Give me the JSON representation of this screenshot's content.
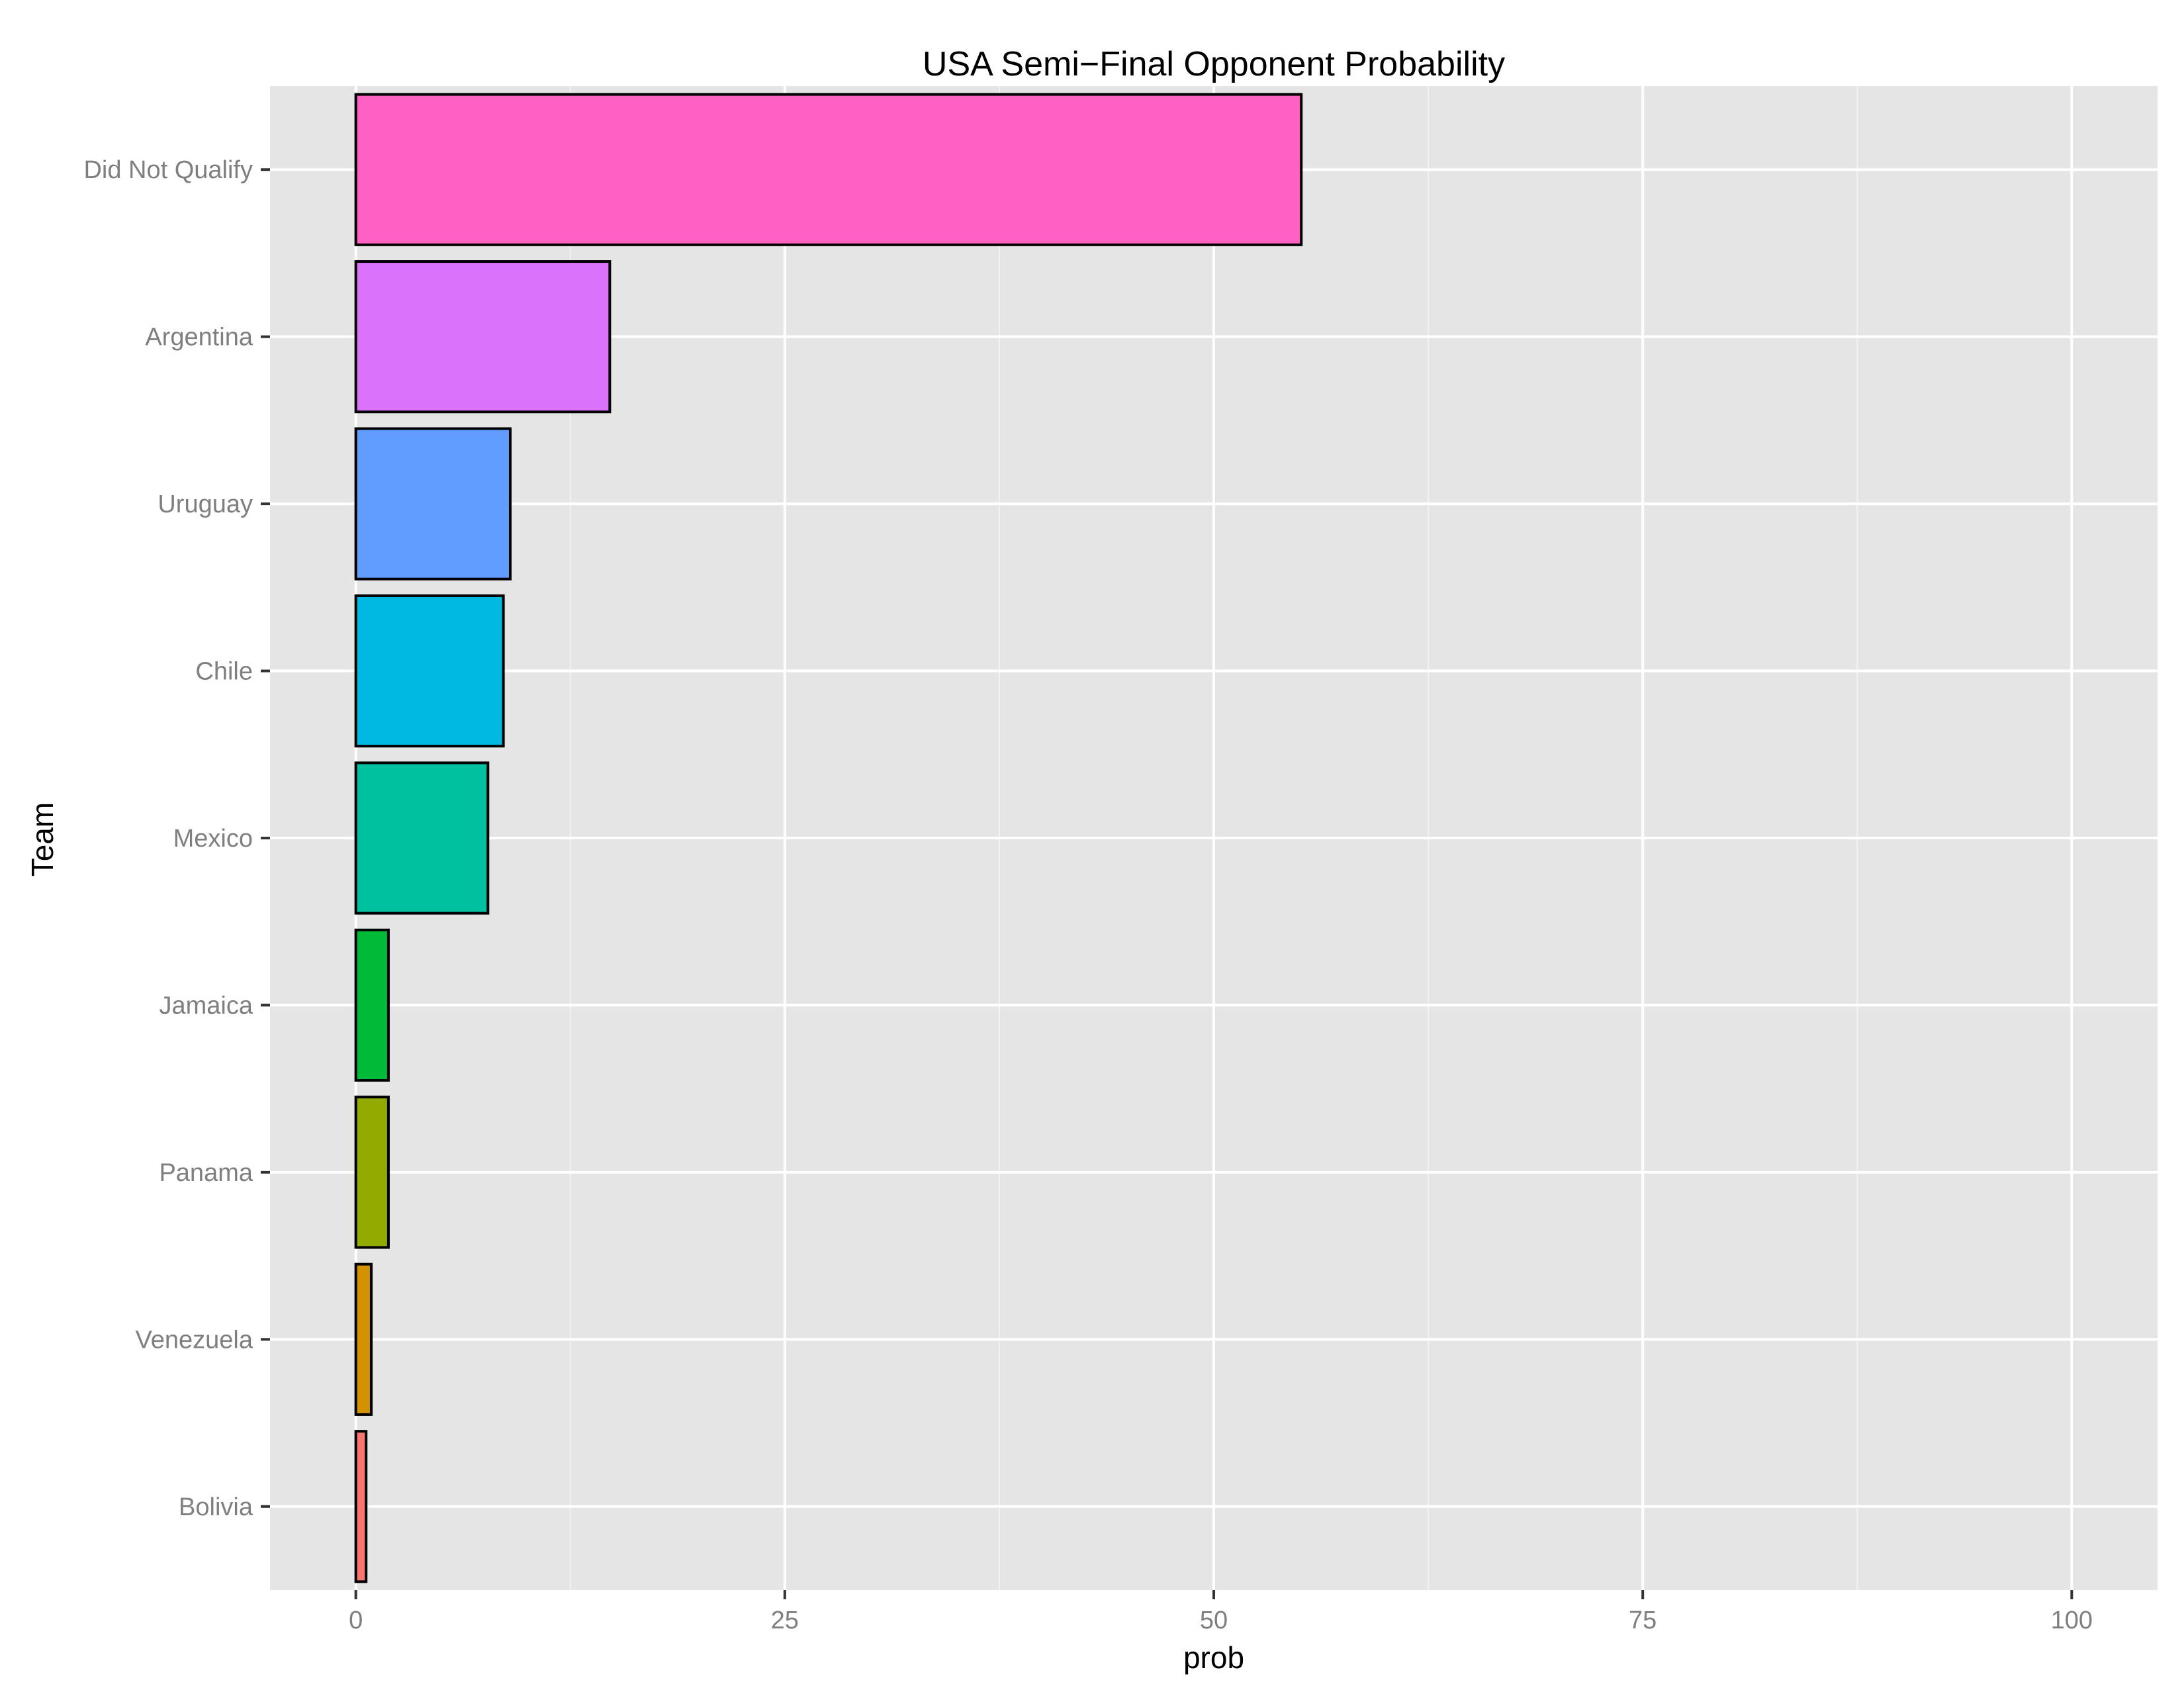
{
  "chart_data": {
    "type": "bar",
    "orientation": "horizontal",
    "title": "USA Semi−Final Opponent Probability",
    "xlabel": "prob",
    "ylabel": "Team",
    "xlim": [
      -5,
      105
    ],
    "x_ticks": [
      0,
      25,
      50,
      75,
      100
    ],
    "x_tick_labels": [
      "0",
      "25",
      "50",
      "75",
      "100"
    ],
    "grid": true,
    "legend": "none",
    "panel_color": "#e5e5e5",
    "grid_color": "#ffffff",
    "bar_outline_color": "#000000",
    "categories": [
      "Did Not Qualify",
      "Argentina",
      "Uruguay",
      "Chile",
      "Mexico",
      "Jamaica",
      "Panama",
      "Venezuela",
      "Bolivia"
    ],
    "values": [
      55.1,
      14.8,
      9.0,
      8.6,
      7.7,
      1.9,
      1.9,
      0.9,
      0.6
    ],
    "colors": [
      "#ff61c3",
      "#db72fb",
      "#619cff",
      "#00b9e3",
      "#00c19f",
      "#00ba38",
      "#93aa00",
      "#d39200",
      "#f8766d"
    ]
  }
}
